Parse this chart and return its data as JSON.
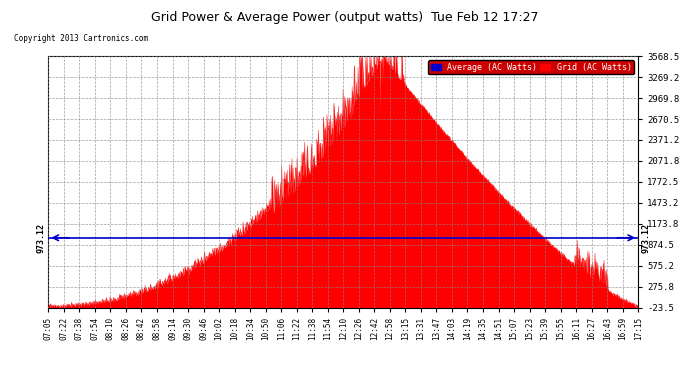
{
  "title": "Grid Power & Average Power (output watts)  Tue Feb 12 17:27",
  "copyright": "Copyright 2013 Cartronics.com",
  "average_label": "Average (AC Watts)",
  "grid_label": "Grid (AC Watts)",
  "average_value": 973.12,
  "ylim_min": -23.5,
  "ylim_max": 3568.5,
  "yticks": [
    3568.5,
    3269.2,
    2969.8,
    2670.5,
    2371.2,
    2071.8,
    1772.5,
    1473.2,
    1173.8,
    874.5,
    575.2,
    275.8,
    -23.5
  ],
  "fill_color": "#ff0000",
  "line_color": "#0000cc",
  "background_color": "#ffffff",
  "grid_color": "#aaaaaa",
  "title_color": "#000000",
  "xtick_labels": [
    "07:05",
    "07:22",
    "07:38",
    "07:54",
    "08:10",
    "08:26",
    "08:42",
    "08:58",
    "09:14",
    "09:30",
    "09:46",
    "10:02",
    "10:18",
    "10:34",
    "10:50",
    "11:06",
    "11:22",
    "11:38",
    "11:54",
    "12:10",
    "12:26",
    "12:42",
    "12:58",
    "13:15",
    "13:31",
    "13:47",
    "14:03",
    "14:19",
    "14:35",
    "14:51",
    "15:07",
    "15:23",
    "15:39",
    "15:55",
    "16:11",
    "16:27",
    "16:43",
    "16:59",
    "17:15"
  ]
}
